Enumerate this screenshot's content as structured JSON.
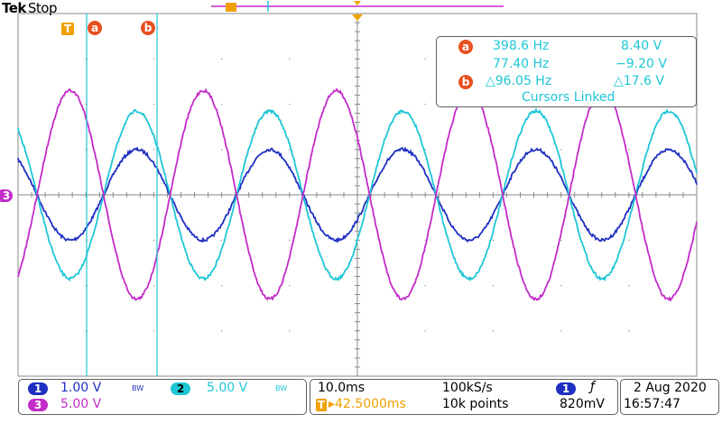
{
  "header": {
    "brand": "Tek",
    "status": "Stop"
  },
  "cursors": {
    "a_marker": "a",
    "b_marker": "b",
    "trigger_marker": "T",
    "readout": {
      "a_freq": "398.6 Hz",
      "a_volt": "8.40 V",
      "b_freq": "77.40 Hz",
      "b_volt": "−9.20 V",
      "delta_freq": "△96.05 Hz",
      "delta_volt": "△17.6 V",
      "mode": "Cursors Linked"
    }
  },
  "channel_marker": "3",
  "status_bar": {
    "ch1": {
      "num": "1",
      "scale": "1.00 V",
      "bw": "BW"
    },
    "ch2": {
      "num": "2",
      "scale": "5.00 V",
      "bw": "BW"
    },
    "ch3": {
      "num": "3",
      "scale": "5.00 V"
    },
    "timebase": "10.0ms",
    "sample_rate": "100kS/s",
    "trigger_pos": "▸42.5000ms",
    "record_length": "10k points",
    "trigger_source": "1",
    "trigger_slope": "ƒ",
    "trigger_level": "820mV",
    "date": "2 Aug 2020",
    "time": "16:57:47"
  },
  "colors": {
    "ch1": "#1f2fc0",
    "ch2": "#1fc6d6",
    "ch3": "#c22cc8",
    "grid": "#8a8a8a",
    "cursor": "#1fc6d6"
  },
  "chart_data": {
    "type": "line",
    "series": [
      {
        "channel": "1",
        "period_div": 1.96,
        "amplitude_div": 1.0,
        "phase_div": -0.7
      },
      {
        "channel": "2",
        "period_div": 1.96,
        "amplitude_div": 1.85,
        "phase_div": -0.7
      },
      {
        "channel": "3",
        "period_div": 1.96,
        "amplitude_div": 2.3,
        "phase_div": 0.28
      }
    ]
  }
}
